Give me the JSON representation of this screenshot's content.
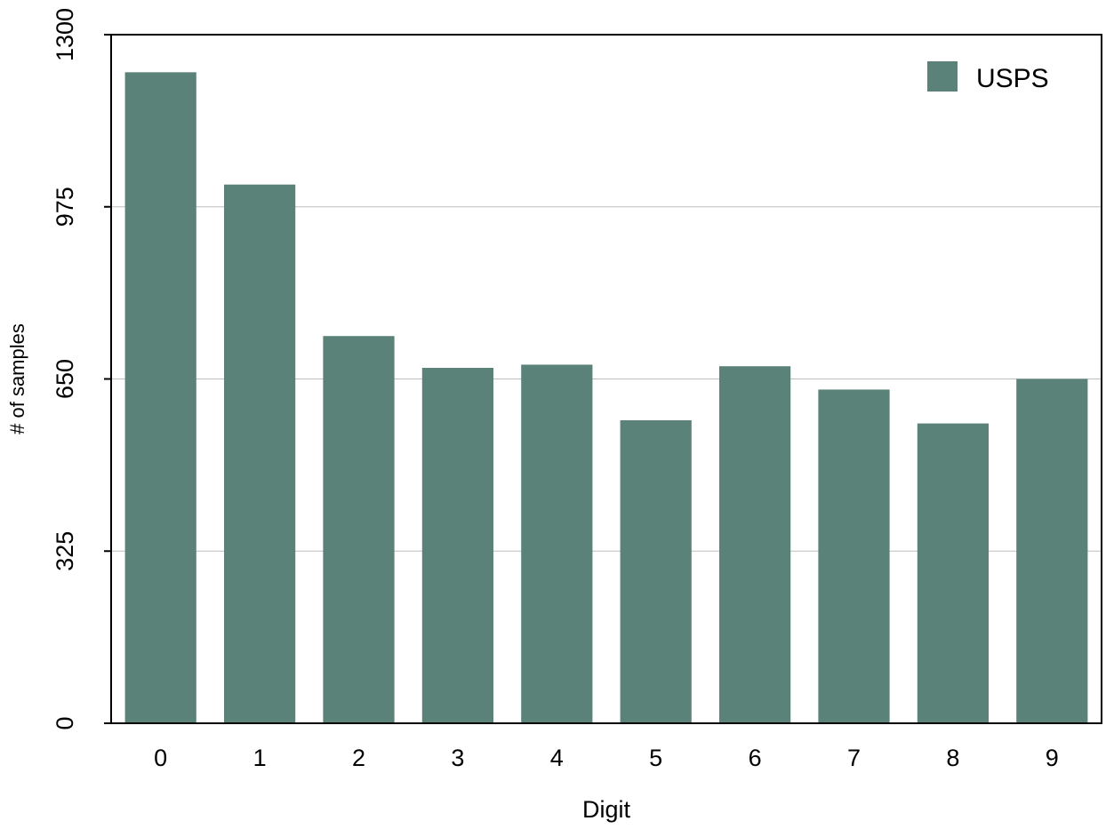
{
  "chart_data": {
    "type": "bar",
    "title": "",
    "xlabel": "Digit",
    "ylabel": "# of samples",
    "categories": [
      "0",
      "1",
      "2",
      "3",
      "4",
      "5",
      "6",
      "7",
      "8",
      "9"
    ],
    "series": [
      {
        "name": "USPS",
        "values": [
          1229,
          1017,
          731,
          671,
          677,
          572,
          674,
          630,
          566,
          650
        ]
      }
    ],
    "ylim": [
      0,
      1300
    ],
    "yticks": [
      0,
      325,
      650,
      975,
      1300
    ],
    "grid": "horizontal",
    "legend_position": "top-right",
    "colors": {
      "bar": "#5b8279",
      "grid": "#bdbdbd",
      "axis": "#000000"
    }
  }
}
